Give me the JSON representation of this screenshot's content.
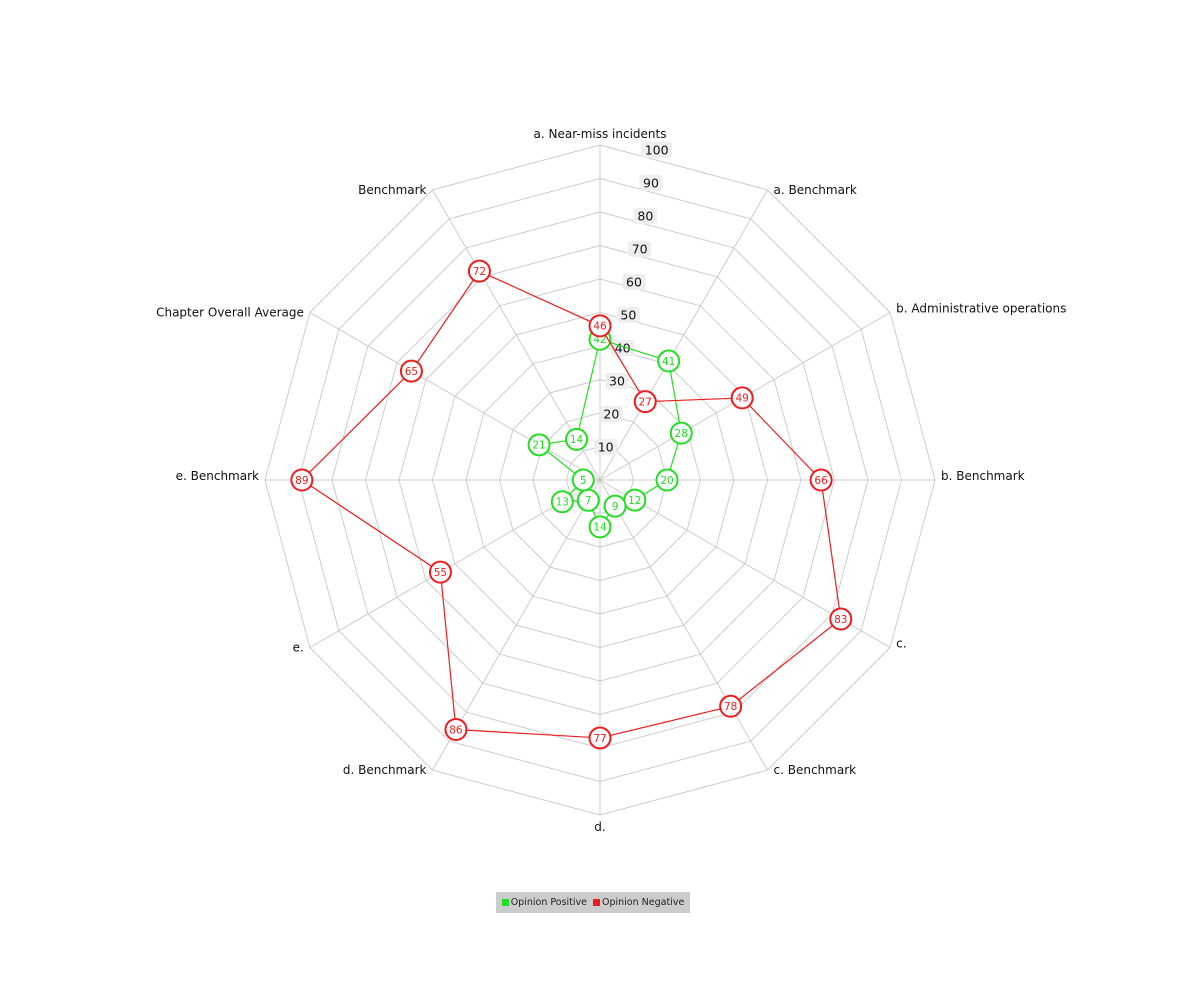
{
  "colors": {
    "positive": "#22dd22",
    "negative": "#ee1c1c",
    "grid": "#cccccc",
    "tick_bg": "#eeeeee"
  },
  "chart_data": {
    "type": "radar",
    "title": "",
    "axes": [
      "a. Near-miss incidents",
      "a. Benchmark",
      "b. Administrative operations",
      "b. Benchmark",
      "c.",
      "c. Benchmark",
      "d.",
      "d. Benchmark",
      "e.",
      "e. Benchmark",
      "Chapter Overall Average",
      "Benchmark"
    ],
    "ticks": [
      10,
      20,
      30,
      40,
      50,
      60,
      70,
      80,
      90,
      100
    ],
    "range": [
      0,
      100
    ],
    "grid": true,
    "legend_position": "bottom",
    "series": [
      {
        "name": "Opinion Positive",
        "color": "#22dd22",
        "values": [
          42,
          41,
          28,
          20,
          12,
          9,
          14,
          7,
          13,
          5,
          21,
          14
        ]
      },
      {
        "name": "Opinion Negative",
        "color": "#ee1c1c",
        "values": [
          46,
          27,
          49,
          66,
          83,
          78,
          77,
          86,
          55,
          89,
          65,
          72
        ]
      }
    ]
  }
}
